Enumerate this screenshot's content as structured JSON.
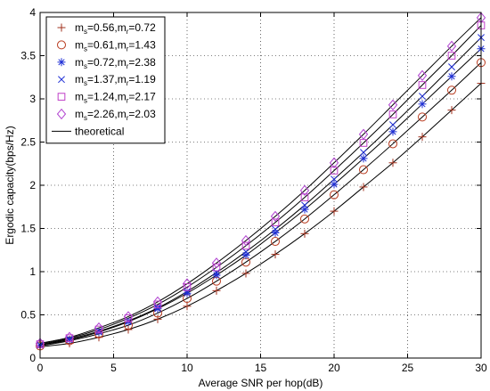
{
  "chart_data": {
    "type": "line",
    "title": "",
    "xlabel": "Average SNR per hop(dB)",
    "ylabel": "Ergodic capacity(bps/Hz)",
    "xlim": [
      0,
      30
    ],
    "ylim": [
      0,
      4
    ],
    "xticks": [
      "0",
      "5",
      "10",
      "15",
      "20",
      "25",
      "30"
    ],
    "yticks": [
      "0",
      "0.5",
      "1",
      "1.5",
      "2",
      "2.5",
      "3",
      "3.5",
      "4"
    ],
    "grid": true,
    "legend_position": "top-left",
    "x": [
      0,
      2,
      4,
      6,
      8,
      10,
      12,
      14,
      16,
      18,
      20,
      22,
      24,
      26,
      28,
      30
    ],
    "series": [
      {
        "name": "m_s=0.56,m_r=0.72",
        "label_main": "m",
        "label_sub1": "s",
        "label_mid": "=0.56,m",
        "label_sub2": "r",
        "label_end": "=0.72",
        "marker": "plus",
        "color": "#a0301c",
        "values": [
          0.13,
          0.17,
          0.24,
          0.33,
          0.45,
          0.6,
          0.78,
          0.98,
          1.2,
          1.44,
          1.7,
          1.98,
          2.26,
          2.56,
          2.87,
          3.18
        ]
      },
      {
        "name": "m_s=0.61,m_r=1.43",
        "label_main": "m",
        "label_sub1": "s",
        "label_mid": "=0.61,m",
        "label_sub2": "r",
        "label_end": "=1.43",
        "marker": "circle",
        "color": "#b83a1e",
        "values": [
          0.14,
          0.2,
          0.28,
          0.38,
          0.52,
          0.69,
          0.89,
          1.11,
          1.35,
          1.61,
          1.89,
          2.18,
          2.48,
          2.79,
          3.1,
          3.42
        ]
      },
      {
        "name": "m_s=0.72,m_r=2.38",
        "label_main": "m",
        "label_sub1": "s",
        "label_mid": "=0.72,m",
        "label_sub2": "r",
        "label_end": "=2.38",
        "marker": "asterisk",
        "color": "#1f2fd6",
        "values": [
          0.15,
          0.21,
          0.3,
          0.42,
          0.57,
          0.75,
          0.96,
          1.19,
          1.45,
          1.72,
          2.01,
          2.31,
          2.62,
          2.94,
          3.26,
          3.58
        ]
      },
      {
        "name": "m_s=1.37,m_r=1.19",
        "label_main": "m",
        "label_sub1": "s",
        "label_mid": "=1.37,m",
        "label_sub2": "r",
        "label_end": "=1.19",
        "marker": "x",
        "color": "#1f2fd6",
        "values": [
          0.15,
          0.22,
          0.31,
          0.43,
          0.58,
          0.77,
          0.99,
          1.23,
          1.49,
          1.77,
          2.07,
          2.38,
          2.7,
          3.03,
          3.37,
          3.71
        ]
      },
      {
        "name": "m_s=1.24,m_r=2.17",
        "label_main": "m",
        "label_sub1": "s",
        "label_mid": "=1.24,m",
        "label_sub2": "r",
        "label_end": "=2.17",
        "marker": "square",
        "color": "#c040c8",
        "values": [
          0.16,
          0.23,
          0.33,
          0.46,
          0.62,
          0.82,
          1.05,
          1.3,
          1.57,
          1.86,
          2.17,
          2.49,
          2.82,
          3.16,
          3.5,
          3.85
        ]
      },
      {
        "name": "m_s=2.26,m_r=2.03",
        "label_main": "m",
        "label_sub1": "s",
        "label_mid": "=2.26,m",
        "label_sub2": "r",
        "label_end": "=2.03",
        "marker": "diamond",
        "color": "#b040d0",
        "values": [
          0.17,
          0.24,
          0.35,
          0.48,
          0.65,
          0.86,
          1.1,
          1.36,
          1.64,
          1.94,
          2.26,
          2.59,
          2.93,
          3.27,
          3.61,
          3.94
        ]
      }
    ],
    "theoretical": {
      "name": "theoretical",
      "color": "#000000"
    }
  }
}
